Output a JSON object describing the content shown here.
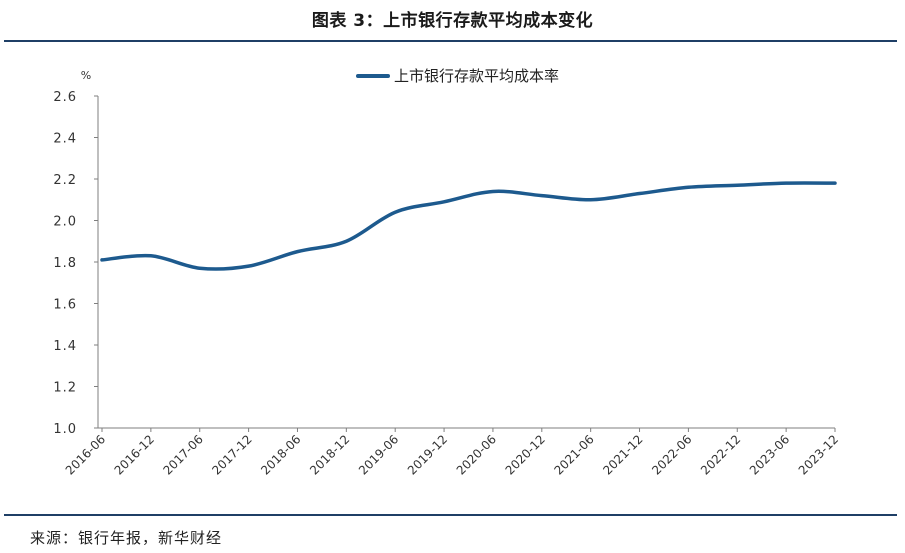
{
  "header": {
    "title": "图表 3：上市银行存款平均成本变化"
  },
  "footer": {
    "source": "来源：银行年报，新华财经"
  },
  "chart_data": {
    "type": "line",
    "title": "图表 3：上市银行存款平均成本变化",
    "ylabel": "%",
    "xlabel": "",
    "ylim": [
      1.0,
      2.6
    ],
    "yticks": [
      "1.0",
      "1.2",
      "1.4",
      "1.6",
      "1.8",
      "2.0",
      "2.2",
      "2.4",
      "2.6"
    ],
    "categories": [
      "2016-06",
      "2016-12",
      "2017-06",
      "2017-12",
      "2018-06",
      "2018-12",
      "2019-06",
      "2019-12",
      "2020-06",
      "2020-12",
      "2021-06",
      "2021-12",
      "2022-06",
      "2022-12",
      "2023-06",
      "2023-12"
    ],
    "series": [
      {
        "name": "上市银行存款平均成本率",
        "values": [
          1.81,
          1.83,
          1.77,
          1.78,
          1.85,
          1.9,
          2.04,
          2.09,
          2.14,
          2.12,
          2.1,
          2.13,
          2.16,
          2.17,
          2.18,
          2.18
        ],
        "color": "#1d5a8e"
      }
    ],
    "legend": "top-center",
    "grid": false
  }
}
